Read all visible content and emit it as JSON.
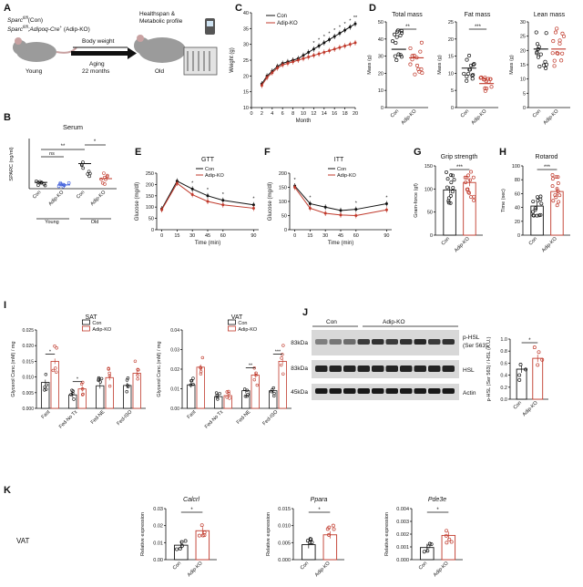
{
  "colors": {
    "con": "#111111",
    "ko": "#c0392b",
    "blue": "#3b5bdb"
  },
  "panels": {
    "A": {
      "label": "A",
      "genotype_con": "Sparc",
      "genotype_con_sup": "fl/fl",
      "genotype_con_tail": "(Con)",
      "genotype_ko": "Sparc",
      "genotype_ko_sup": "fl/fl",
      "genotype_ko_mid": ";Adipoq-Cre",
      "genotype_ko_sup2": "+",
      "genotype_ko_tail": " (Adip-KO)",
      "body_weight": "Body weight",
      "aging": "Aging",
      "months": "22 months",
      "young": "Young",
      "old": "Old",
      "healthspan": "Healthspan &",
      "metabolic": "Metabolic profile"
    },
    "B": {
      "label": "B"
    },
    "C": {
      "label": "C"
    },
    "D": {
      "label": "D"
    },
    "E": {
      "label": "E"
    },
    "F": {
      "label": "F"
    },
    "G": {
      "label": "G"
    },
    "H": {
      "label": "H"
    },
    "I": {
      "label": "I"
    },
    "J": {
      "label": "J",
      "group_con": "Con",
      "group_ko": "Adip-KO",
      "rows": [
        "83kDa",
        "83kDa",
        "45kDa"
      ],
      "bands": [
        "p-HSL",
        "(Ser 563)",
        "HSL",
        "Actin"
      ]
    },
    "K": {
      "label": "K",
      "row_label": "VAT"
    }
  },
  "chart_data": [
    {
      "id": "B",
      "type": "scatter",
      "title": "Serum",
      "ylabel": "SPARC (ng/ml)",
      "categories": [
        "Con",
        "Adip-KO",
        "Con",
        "Adip-KO"
      ],
      "groups": [
        "Young",
        "Old"
      ],
      "means": [
        10,
        6,
        40,
        16
      ],
      "significance": [
        "ns",
        "**",
        "*"
      ]
    },
    {
      "id": "C",
      "type": "line",
      "xlabel": "Month",
      "ylabel": "Weight (g)",
      "ylim": [
        10,
        40
      ],
      "xticks": [
        0,
        2,
        4,
        6,
        8,
        10,
        12,
        14,
        16,
        18,
        20
      ],
      "yticks": [
        10,
        15,
        20,
        25,
        30,
        35,
        40
      ],
      "x": [
        2,
        3,
        4,
        5,
        6,
        7,
        8,
        9,
        10,
        11,
        12,
        13,
        14,
        15,
        16,
        17,
        18,
        19,
        20
      ],
      "series": [
        {
          "name": "Con",
          "values": [
            17.5,
            20,
            21.5,
            23,
            24,
            24.5,
            25,
            25.5,
            26.5,
            27.5,
            28.5,
            29.5,
            30.5,
            31.5,
            32.5,
            33.5,
            34.5,
            35.5,
            36.5
          ]
        },
        {
          "name": "Adip-KO",
          "values": [
            17,
            19.5,
            21,
            22.5,
            23.5,
            24,
            24.5,
            25,
            25.5,
            26,
            26.5,
            27,
            27.5,
            28,
            28.5,
            29,
            29.5,
            30,
            30.5
          ]
        }
      ],
      "significance": [
        "*",
        "*",
        "*",
        "*",
        "*",
        "*",
        "*",
        "*",
        "**"
      ]
    },
    {
      "id": "D1",
      "type": "scatter",
      "title": "Total mass",
      "ylabel": "Mass (g)",
      "ylim": [
        0,
        50
      ],
      "yticks": [
        0,
        10,
        20,
        30,
        40,
        50
      ],
      "categories": [
        "Con",
        "Adip-KO"
      ],
      "means": [
        34,
        29
      ],
      "significance": "**"
    },
    {
      "id": "D2",
      "type": "scatter",
      "title": "Fat mass",
      "ylabel": "Mass (g)",
      "ylim": [
        0,
        25
      ],
      "yticks": [
        0,
        5,
        10,
        15,
        20,
        25
      ],
      "categories": [
        "Con",
        "Adip-KO"
      ],
      "means": [
        11.5,
        7
      ],
      "significance": "***"
    },
    {
      "id": "D3",
      "type": "scatter",
      "title": "Lean mass",
      "ylabel": "Mass (g)",
      "ylim": [
        0,
        30
      ],
      "yticks": [
        0,
        5,
        10,
        15,
        20,
        25,
        30
      ],
      "categories": [
        "Con",
        "Adip-KO"
      ],
      "means": [
        20.5,
        20.5
      ]
    },
    {
      "id": "E",
      "type": "line",
      "title": "GTT",
      "xlabel": "Time (min)",
      "ylabel": "Glucose (mg/dl)",
      "ylim": [
        0,
        250
      ],
      "x": [
        0,
        15,
        30,
        45,
        60,
        90
      ],
      "yticks": [
        0,
        50,
        100,
        150,
        200,
        250
      ],
      "series": [
        {
          "name": "Con",
          "values": [
            92,
            215,
            180,
            150,
            130,
            110
          ]
        },
        {
          "name": "Adip-KO",
          "values": [
            88,
            205,
            155,
            125,
            110,
            95
          ]
        }
      ],
      "significance": [
        "*",
        "*",
        "*",
        "*"
      ]
    },
    {
      "id": "F",
      "type": "line",
      "title": "ITT",
      "xlabel": "Time (min)",
      "ylabel": "Glucose (mg/dl)",
      "ylim": [
        0,
        200
      ],
      "x": [
        0,
        15,
        30,
        45,
        60,
        90
      ],
      "yticks": [
        0,
        50,
        100,
        150,
        200
      ],
      "series": [
        {
          "name": "Con",
          "values": [
            155,
            92,
            80,
            68,
            72,
            92
          ]
        },
        {
          "name": "Adip-KO",
          "values": [
            150,
            76,
            58,
            52,
            50,
            70
          ]
        }
      ],
      "significance": [
        "*",
        "*",
        "*",
        "*"
      ]
    },
    {
      "id": "G",
      "type": "bar",
      "title": "Grip strength",
      "ylabel": "Gram-force (gf)",
      "ylim": [
        0,
        150
      ],
      "yticks": [
        0,
        50,
        100,
        150
      ],
      "categories": [
        "Con",
        "Adip-KO"
      ],
      "values": [
        98,
        114
      ],
      "significance": "***"
    },
    {
      "id": "H",
      "type": "bar",
      "title": "Rotarod",
      "ylabel": "Time (sec)",
      "ylim": [
        0,
        100
      ],
      "yticks": [
        0,
        20,
        40,
        60,
        80,
        100
      ],
      "categories": [
        "Con",
        "Adip-KO"
      ],
      "values": [
        42,
        63
      ],
      "significance": "***"
    },
    {
      "id": "I1",
      "type": "bar",
      "title": "SAT",
      "ylabel": "Glycerol Conc.(mM) / mg",
      "ylim": [
        0,
        0.025
      ],
      "yticks": [
        "0.000",
        "0.005",
        "0.010",
        "0.015",
        "0.020",
        "0.025"
      ],
      "categories": [
        "Fast",
        "Fed-No Tx",
        "Fed-NE",
        "Fed-ISO"
      ],
      "series": [
        {
          "name": "Con",
          "values": [
            0.0083,
            0.0043,
            0.0072,
            0.0073
          ]
        },
        {
          "name": "Adip-KO",
          "values": [
            0.015,
            0.0062,
            0.0098,
            0.0112
          ]
        }
      ],
      "significance": [
        "*",
        "*"
      ]
    },
    {
      "id": "I2",
      "type": "bar",
      "title": "VAT",
      "ylabel": "Glycerol Conc.(mM) / mg",
      "ylim": [
        0,
        0.04
      ],
      "yticks": [
        "0.00",
        "0.01",
        "0.02",
        "0.03",
        "0.04"
      ],
      "categories": [
        "Fast",
        "Fed-No Tx",
        "Fed-NE",
        "Fed-ISO"
      ],
      "series": [
        {
          "name": "Con",
          "values": [
            0.012,
            0.006,
            0.009,
            0.009
          ]
        },
        {
          "name": "Adip-KO",
          "values": [
            0.021,
            0.0065,
            0.017,
            0.024
          ]
        }
      ],
      "significance": [
        "**",
        "***"
      ]
    },
    {
      "id": "J",
      "type": "bar",
      "ylabel": "p-HSL (Ser 563) / HSL (A.U.)",
      "ylim": [
        0,
        1.0
      ],
      "yticks": [
        "0.0",
        "0.2",
        "0.4",
        "0.6",
        "0.8",
        "1.0"
      ],
      "categories": [
        "Con",
        "Adip-KO"
      ],
      "values": [
        0.5,
        0.68
      ],
      "significance": "*"
    },
    {
      "id": "K1",
      "type": "bar",
      "title": "Calcrl",
      "ylabel": "Relative expression",
      "ylim": [
        0,
        0.03
      ],
      "yticks": [
        "0.00",
        "0.01",
        "0.02",
        "0.03"
      ],
      "categories": [
        "Con",
        "Adip-KO"
      ],
      "values": [
        0.0085,
        0.017
      ],
      "significance": "*"
    },
    {
      "id": "K2",
      "type": "bar",
      "title": "Ppara",
      "ylabel": "Relative expression",
      "ylim": [
        0,
        0.015
      ],
      "yticks": [
        "0.000",
        "0.005",
        "0.010",
        "0.015"
      ],
      "categories": [
        "Con",
        "Adip-KO"
      ],
      "values": [
        0.0044,
        0.0073
      ],
      "significance": "*"
    },
    {
      "id": "K3",
      "type": "bar",
      "title": "Pde3e",
      "ylabel": "Relative expression",
      "ylim": [
        0,
        0.004
      ],
      "yticks": [
        "0.000",
        "0.001",
        "0.002",
        "0.003",
        "0.004"
      ],
      "categories": [
        "Con",
        "Adip-KO"
      ],
      "values": [
        0.00095,
        0.0019
      ],
      "significance": "*"
    }
  ]
}
